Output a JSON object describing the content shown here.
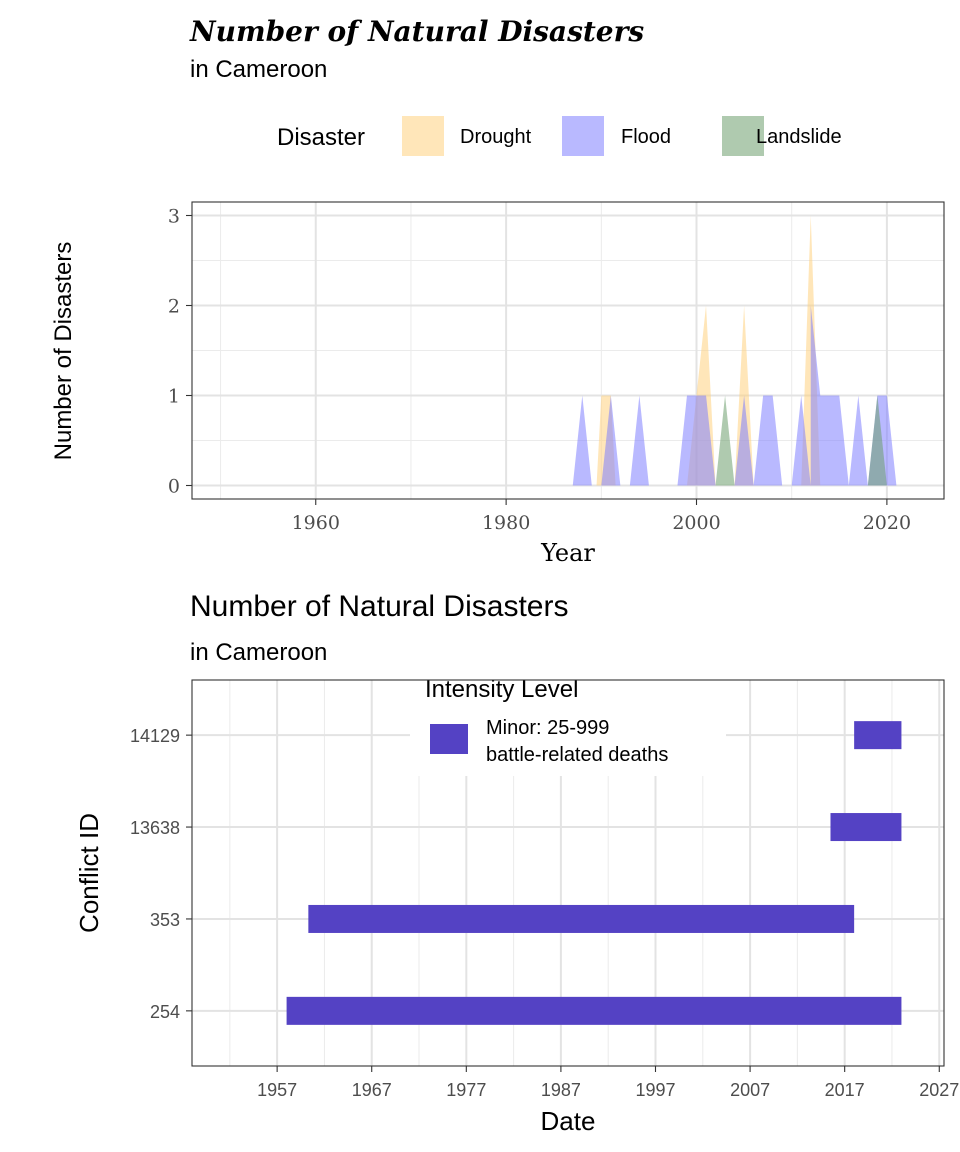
{
  "chart_data": [
    {
      "type": "area",
      "title": "Number of Natural Disasters",
      "subtitle": "in Cameroon",
      "xlabel": "Year",
      "ylabel": "Number of Disasters",
      "xlim": [
        1947,
        2026
      ],
      "ylim": [
        -0.15,
        3.15
      ],
      "xticks": [
        1960,
        1980,
        2000,
        2020
      ],
      "yticks": [
        0,
        1,
        2,
        3
      ],
      "grid": true,
      "legend": {
        "title": "Disaster",
        "position": "top"
      },
      "series": [
        {
          "name": "Drought",
          "color": "#FFD27F",
          "points": [
            [
              1988,
              0
            ],
            [
              1989.5,
              0
            ],
            [
              1990,
              1
            ],
            [
              1991,
              1
            ],
            [
              1991.5,
              0
            ],
            [
              1999,
              0
            ],
            [
              2001,
              2
            ],
            [
              2002,
              0
            ],
            [
              2004,
              0
            ],
            [
              2005,
              2
            ],
            [
              2006,
              0
            ],
            [
              2011,
              0
            ],
            [
              2012,
              3
            ],
            [
              2013,
              0
            ]
          ]
        },
        {
          "name": "Flood",
          "color": "#7F7FFF",
          "points": [
            [
              1987,
              0
            ],
            [
              1988,
              1
            ],
            [
              1989,
              0
            ],
            [
              1990,
              0
            ],
            [
              1991,
              1
            ],
            [
              1992,
              0
            ],
            [
              1993,
              0
            ],
            [
              1994,
              1
            ],
            [
              1995,
              0
            ],
            [
              1998,
              0
            ],
            [
              1999,
              1
            ],
            [
              2001,
              1
            ],
            [
              2002,
              0
            ],
            [
              2004,
              0
            ],
            [
              2005,
              1
            ],
            [
              2006,
              0
            ],
            [
              2007,
              1
            ],
            [
              2008,
              1
            ],
            [
              2009,
              0
            ],
            [
              2010,
              0
            ],
            [
              2011,
              1
            ],
            [
              2012,
              0
            ],
            [
              2012,
              2
            ],
            [
              2013,
              1
            ],
            [
              2015,
              1
            ],
            [
              2016,
              0
            ],
            [
              2017,
              1
            ],
            [
              2018,
              0
            ],
            [
              2019,
              1
            ],
            [
              2020,
              1
            ],
            [
              2021,
              0
            ]
          ]
        },
        {
          "name": "Landslide",
          "color": "#6E9F6E",
          "points": [
            [
              2002,
              0
            ],
            [
              2003,
              1
            ],
            [
              2004,
              0
            ],
            [
              2018,
              0
            ],
            [
              2019,
              1
            ],
            [
              2020,
              0
            ]
          ]
        }
      ]
    },
    {
      "type": "bar",
      "orientation": "horizontal",
      "title": "Number of Natural Disasters",
      "subtitle": "in Cameroon",
      "xlabel": "Date",
      "ylabel": "Conflict ID",
      "xlim": [
        1948,
        2027.5
      ],
      "xticks": [
        1957,
        1967,
        1977,
        1987,
        1997,
        2007,
        2017,
        2027
      ],
      "categories": [
        "254",
        "353",
        "13638",
        "14129"
      ],
      "grid": true,
      "legend": {
        "title": "Intensity Level",
        "position": "top-right, inside",
        "entries": [
          {
            "label_line1": "Minor: 25-999",
            "label_line2": "battle-related deaths",
            "color": "#5442C4"
          }
        ]
      },
      "bars": [
        {
          "id": "254",
          "start": 1958.0,
          "end": 2023.0
        },
        {
          "id": "353",
          "start": 1960.3,
          "end": 2018.0
        },
        {
          "id": "13638",
          "start": 2015.5,
          "end": 2023.0
        },
        {
          "id": "14129",
          "start": 2018.0,
          "end": 2023.0
        }
      ]
    }
  ]
}
